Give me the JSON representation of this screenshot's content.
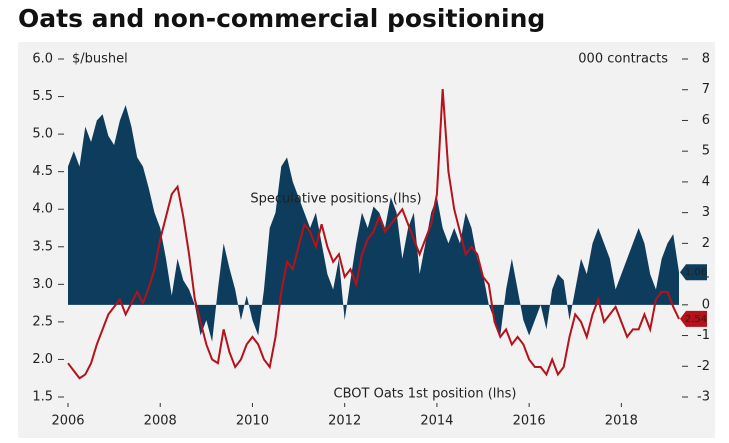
{
  "chart_data": {
    "type": "line",
    "title": "Oats and non-commercial positioning",
    "y_label": "$/bushel",
    "y2_label": "000 contracts",
    "x": [
      2006,
      2006.125,
      2006.25,
      2006.375,
      2006.5,
      2006.625,
      2006.75,
      2006.875,
      2007,
      2007.125,
      2007.25,
      2007.375,
      2007.5,
      2007.625,
      2007.75,
      2007.875,
      2008,
      2008.125,
      2008.25,
      2008.375,
      2008.5,
      2008.625,
      2008.75,
      2008.875,
      2009,
      2009.125,
      2009.25,
      2009.375,
      2009.5,
      2009.625,
      2009.75,
      2009.875,
      2010,
      2010.125,
      2010.25,
      2010.375,
      2010.5,
      2010.625,
      2010.75,
      2010.875,
      2011,
      2011.125,
      2011.25,
      2011.375,
      2011.5,
      2011.625,
      2011.75,
      2011.875,
      2012,
      2012.125,
      2012.25,
      2012.375,
      2012.5,
      2012.625,
      2012.75,
      2012.875,
      2013,
      2013.125,
      2013.25,
      2013.375,
      2013.5,
      2013.625,
      2013.75,
      2013.875,
      2014,
      2014.125,
      2014.25,
      2014.375,
      2014.5,
      2014.625,
      2014.75,
      2014.875,
      2015,
      2015.125,
      2015.25,
      2015.375,
      2015.5,
      2015.625,
      2015.75,
      2015.875,
      2016,
      2016.125,
      2016.25,
      2016.375,
      2016.5,
      2016.625,
      2016.75,
      2016.875,
      2017,
      2017.125,
      2017.25,
      2017.375,
      2017.5,
      2017.625,
      2017.75,
      2017.875,
      2018,
      2018.125,
      2018.25,
      2018.375,
      2018.5,
      2018.625,
      2018.75,
      2018.875,
      2019,
      2019.125,
      2019.25
    ],
    "series": [
      {
        "name": "Speculative positions (lhs)",
        "type": "area",
        "axis": "y2",
        "color": "#0d3c5c",
        "values": [
          4.5,
          5.0,
          4.5,
          5.8,
          5.3,
          6.0,
          6.2,
          5.5,
          5.2,
          6.0,
          6.5,
          5.8,
          4.8,
          4.5,
          3.8,
          3.0,
          2.5,
          1.5,
          0.3,
          1.5,
          0.8,
          0.5,
          0,
          -1,
          -0.5,
          -1.2,
          0.5,
          2.0,
          1.2,
          0.5,
          -0.5,
          0.3,
          -0.5,
          -1.0,
          0.5,
          2.5,
          3.0,
          4.5,
          4.8,
          4.0,
          3.5,
          3.0,
          2.5,
          3.0,
          2.0,
          1.0,
          0.5,
          1.5,
          -0.5,
          0.8,
          2.0,
          3.0,
          2.5,
          3.2,
          3.0,
          2.5,
          3.5,
          3.0,
          1.5,
          2.5,
          3.0,
          1.0,
          2.0,
          3.0,
          3.5,
          2.5,
          2.0,
          2.5,
          2.0,
          3.0,
          2.5,
          1.5,
          1.0,
          0,
          -0.5,
          -1.0,
          0.5,
          1.5,
          0.5,
          -0.5,
          -1.0,
          -0.5,
          0,
          -0.8,
          0.5,
          1.0,
          0.8,
          -0.5,
          0.5,
          1.5,
          1.0,
          2.0,
          2.5,
          2.0,
          1.5,
          0.5,
          1.0,
          1.5,
          2.0,
          2.5,
          2.0,
          1.0,
          0.5,
          1.5,
          2.0,
          2.3,
          1.06
        ]
      },
      {
        "name": "CBOT Oats 1st position (lhs)",
        "type": "line",
        "axis": "y",
        "color": "#b5121b",
        "values": [
          1.95,
          1.85,
          1.75,
          1.8,
          1.95,
          2.2,
          2.4,
          2.6,
          2.7,
          2.8,
          2.6,
          2.75,
          2.9,
          2.75,
          2.95,
          3.2,
          3.6,
          3.9,
          4.2,
          4.3,
          3.9,
          3.4,
          2.8,
          2.5,
          2.2,
          2.0,
          1.95,
          2.4,
          2.1,
          1.9,
          2.0,
          2.2,
          2.3,
          2.2,
          2.0,
          1.9,
          2.3,
          2.9,
          3.3,
          3.2,
          3.5,
          3.8,
          3.7,
          3.5,
          3.8,
          3.5,
          3.3,
          3.4,
          3.1,
          3.2,
          3.0,
          3.4,
          3.6,
          3.7,
          3.9,
          3.7,
          3.8,
          3.9,
          4.0,
          3.8,
          3.6,
          3.4,
          3.6,
          3.8,
          4.2,
          5.6,
          4.5,
          4.0,
          3.7,
          3.4,
          3.5,
          3.4,
          3.1,
          3.0,
          2.5,
          2.3,
          2.4,
          2.2,
          2.3,
          2.2,
          2.0,
          1.9,
          1.9,
          1.8,
          2.0,
          1.8,
          1.9,
          2.3,
          2.6,
          2.5,
          2.3,
          2.6,
          2.8,
          2.5,
          2.6,
          2.7,
          2.5,
          2.3,
          2.4,
          2.4,
          2.6,
          2.4,
          2.8,
          2.9,
          2.9,
          2.7,
          2.54
        ]
      }
    ],
    "xlim": [
      2006,
      2019.25
    ],
    "xticks": [
      2006,
      2008,
      2010,
      2012,
      2014,
      2016,
      2018
    ],
    "ylim": [
      1.5,
      6.0
    ],
    "yticks": [
      {
        "value": 1.5,
        "label": "1.5"
      },
      {
        "value": 2,
        "label": "2.0"
      },
      2.5,
      {
        "value": 3,
        "label": "3.0"
      },
      3.5,
      {
        "value": 4,
        "label": "4.0"
      },
      4.5,
      {
        "value": 5,
        "label": "5.0"
      },
      5.5,
      {
        "value": 6,
        "label": "6.0"
      }
    ],
    "y2lim": [
      -3,
      8
    ],
    "y2ticks": [
      -3,
      -2,
      -1,
      0,
      1,
      2,
      3,
      4,
      5,
      6,
      7,
      8
    ],
    "grid": false
  }
}
